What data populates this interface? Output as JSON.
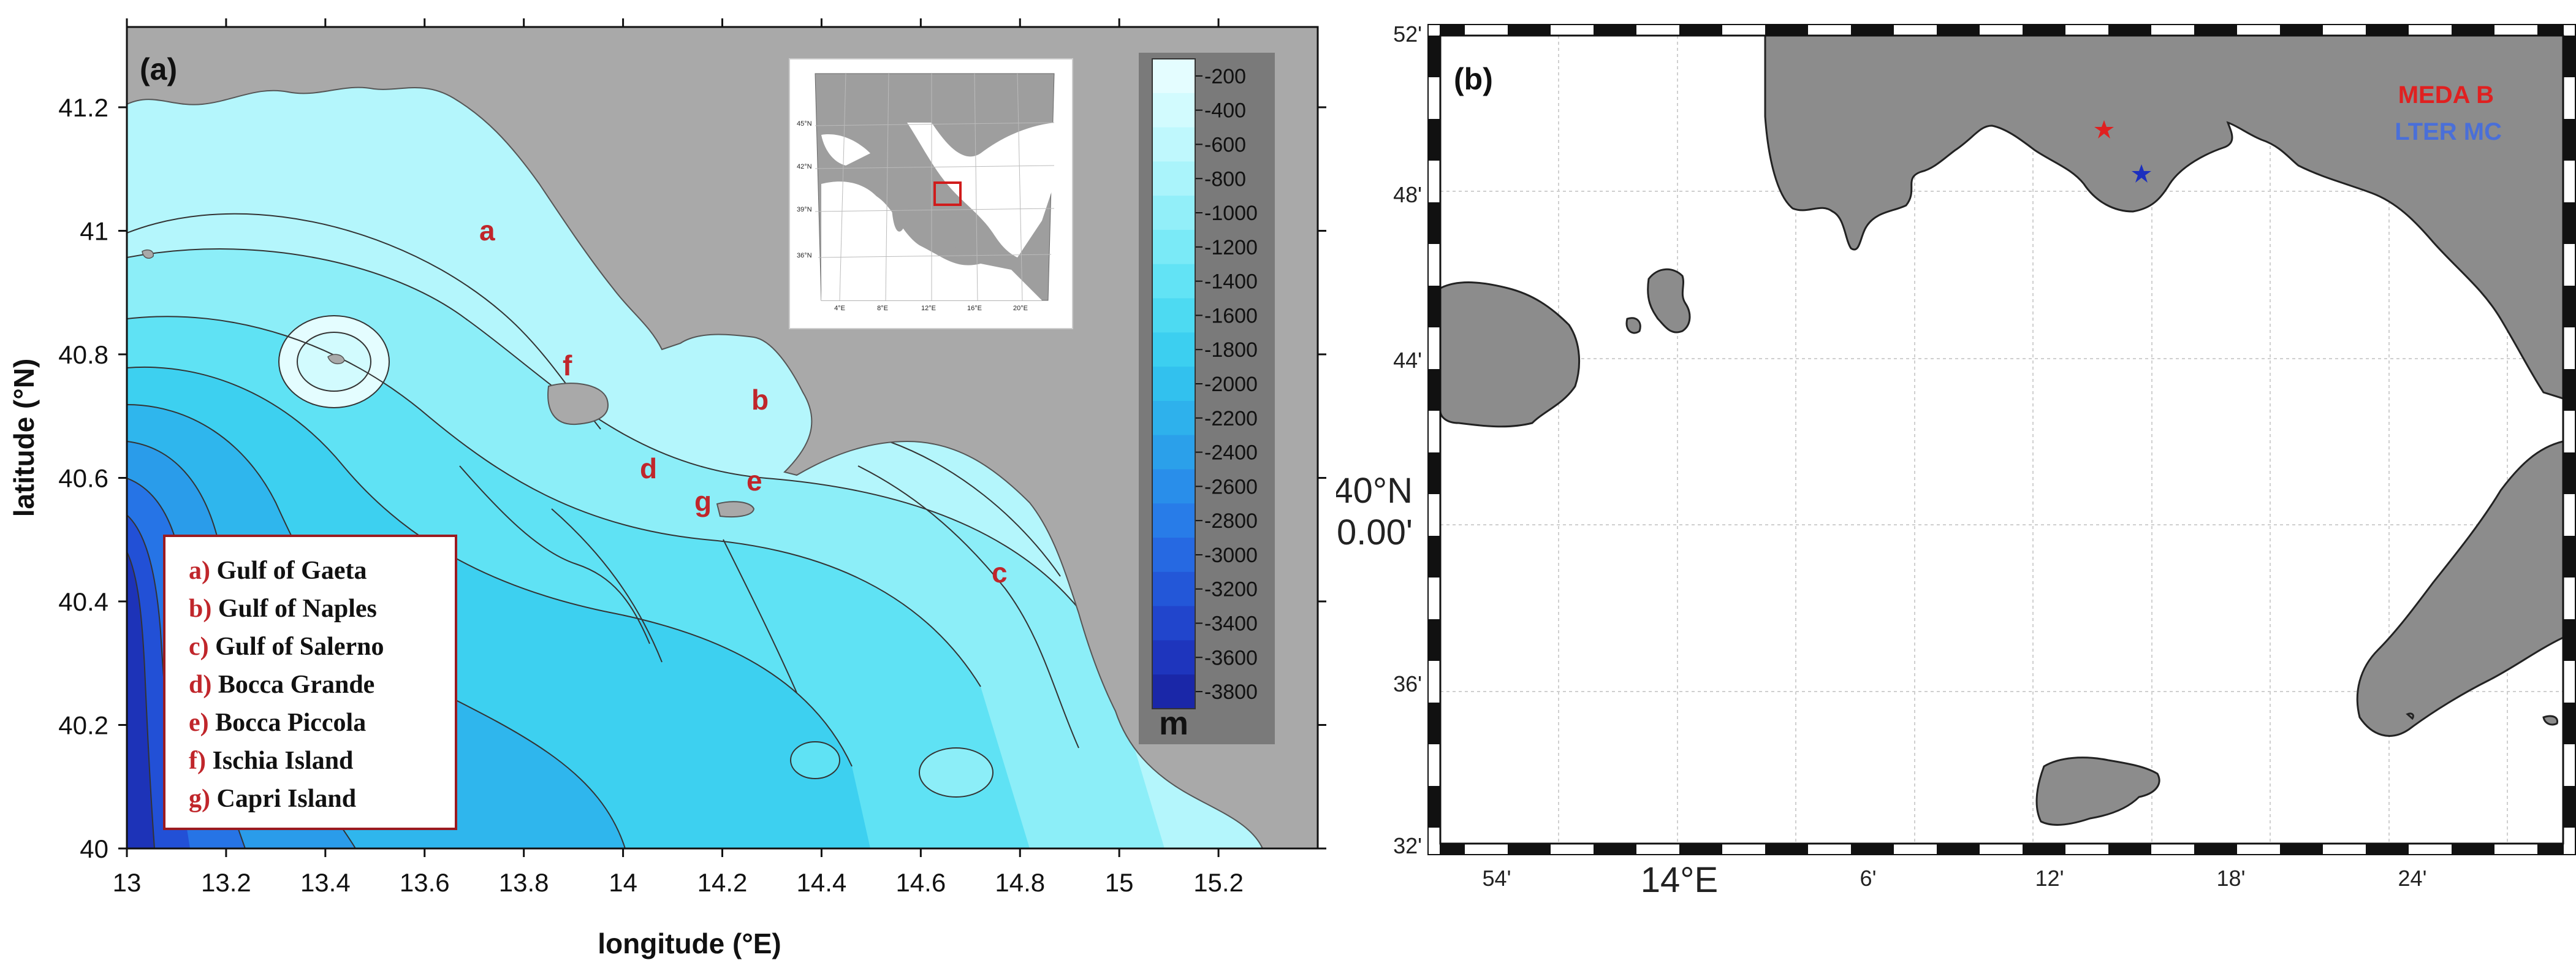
{
  "panel_a": {
    "label": "(a)",
    "x_axis_title": "longitude (°E)",
    "y_axis_title": "latitude (°N)",
    "x_ticks": [
      "13",
      "13.2",
      "13.4",
      "13.6",
      "13.8",
      "14",
      "14.2",
      "14.4",
      "14.6",
      "14.8",
      "15",
      "15.2"
    ],
    "y_ticks": [
      "40",
      "40.2",
      "40.4",
      "40.6",
      "40.8",
      "41",
      "41.2"
    ],
    "area_letters": {
      "a": "a",
      "b": "b",
      "c": "c",
      "d": "d",
      "e": "e",
      "f": "f",
      "g": "g"
    },
    "legend": [
      {
        "key": "a)",
        "text": "Gulf of Gaeta"
      },
      {
        "key": "b)",
        "text": "Gulf of Naples"
      },
      {
        "key": "c)",
        "text": "Gulf of Salerno"
      },
      {
        "key": "d)",
        "text": "Bocca Grande"
      },
      {
        "key": "e)",
        "text": "Bocca Piccola"
      },
      {
        "key": "f)",
        "text": "Ischia Island"
      },
      {
        "key": "g)",
        "text": "Capri Island"
      }
    ],
    "colorbar": {
      "levels": [
        "-200",
        "-400",
        "-600",
        "-800",
        "-1000",
        "-1200",
        "-1400",
        "-1600",
        "-1800",
        "-2000",
        "-2200",
        "-2400",
        "-2600",
        "-2800",
        "-3000",
        "-3200",
        "-3400",
        "-3600",
        "-3800"
      ],
      "unit": "m",
      "colors": [
        "#e4fdff",
        "#d2fbfe",
        "#bff8fd",
        "#aaf4fb",
        "#92eff9",
        "#7aeaf7",
        "#62e3f5",
        "#4ddaf2",
        "#3ccff0",
        "#32c1ee",
        "#2eb1ec",
        "#2ba0ea",
        "#298eea",
        "#287ce8",
        "#2669e2",
        "#2357d8",
        "#2145cc",
        "#1e35bd",
        "#1a27a8"
      ]
    },
    "inset": {
      "lat_labels": [
        "45°N",
        "42°N",
        "39°N",
        "36°N"
      ],
      "lon_labels": [
        "4°E",
        "8°E",
        "12°E",
        "16°E",
        "20°E"
      ]
    }
  },
  "panel_b": {
    "label": "(b)",
    "lat_labels": [
      "52'",
      "48'",
      "44'",
      "40°N\n40.00'",
      "36'",
      "32'"
    ],
    "lat_label_main": "40°N",
    "lat_label_sub": "40.00'",
    "lat_minor": [
      "52'",
      "48'",
      "44'",
      "36'",
      "32'"
    ],
    "lon_labels": [
      "54'",
      "14°E",
      "6'",
      "12'",
      "18'",
      "24'"
    ],
    "stations": [
      {
        "name": "MEDA B",
        "color": "#e02020"
      },
      {
        "name": "LTER MC",
        "color": "#4a6fd8"
      }
    ]
  },
  "colors": {
    "land": "#a9a9a9",
    "land_b": "#8c8c8c",
    "letter_red": "#c0262b",
    "frame": "#111111"
  }
}
